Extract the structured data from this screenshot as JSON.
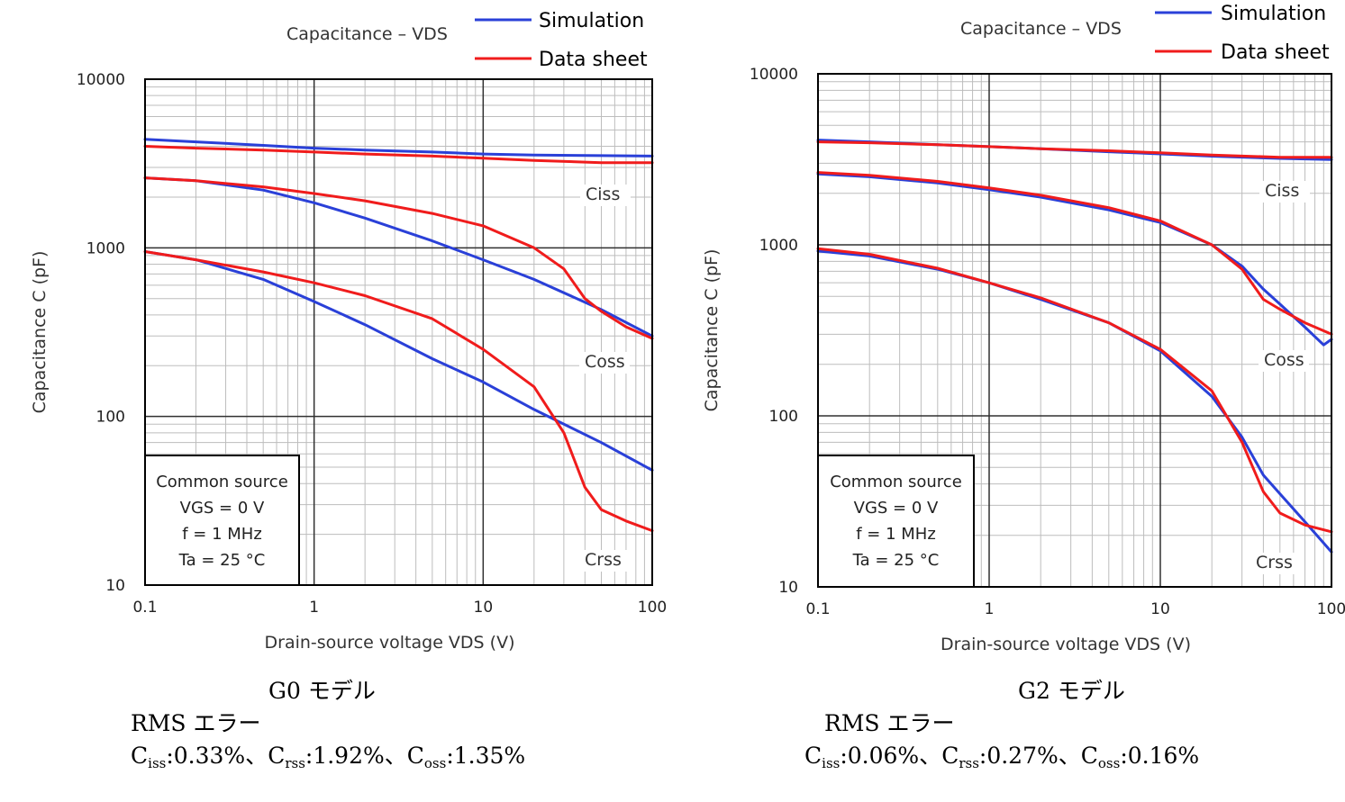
{
  "chart_data": [
    {
      "type": "line",
      "title": "Capacitance – VDS",
      "xlabel": "Drain-source voltage  VDS (V)",
      "ylabel": "Capacitance  C  (pF)",
      "xscale": "log",
      "yscale": "log",
      "xlim": [
        0.1,
        100
      ],
      "ylim": [
        10,
        10000
      ],
      "xticks": [
        "0.1",
        "1",
        "10",
        "100"
      ],
      "yticks": [
        "10",
        "100",
        "1000",
        "10000"
      ],
      "grid": true,
      "legend": [
        {
          "name": "Simulation",
          "color": "#2a40d8"
        },
        {
          "name": "Data sheet",
          "color": "#f01c1c"
        }
      ],
      "conditions": [
        "Common source",
        "VGS = 0 V",
        "f = 1 MHz",
        "Ta = 25 °C"
      ],
      "curve_labels": [
        "Ciss",
        "Coss",
        "Crss"
      ],
      "series": [
        {
          "name": "Ciss (Simulation)",
          "color": "#2a40d8",
          "x": [
            0.1,
            0.2,
            0.5,
            1,
            2,
            5,
            10,
            20,
            50,
            100
          ],
          "y": [
            4400,
            4250,
            4050,
            3900,
            3800,
            3700,
            3600,
            3550,
            3520,
            3500
          ]
        },
        {
          "name": "Ciss (Data sheet)",
          "color": "#f01c1c",
          "x": [
            0.1,
            0.2,
            0.5,
            1,
            2,
            5,
            10,
            20,
            50,
            100
          ],
          "y": [
            4000,
            3900,
            3800,
            3700,
            3600,
            3500,
            3400,
            3300,
            3200,
            3200
          ]
        },
        {
          "name": "Coss (Simulation)",
          "color": "#2a40d8",
          "x": [
            0.1,
            0.2,
            0.5,
            1,
            2,
            5,
            10,
            20,
            50,
            100
          ],
          "y": [
            2600,
            2500,
            2200,
            1850,
            1500,
            1100,
            850,
            650,
            430,
            300
          ]
        },
        {
          "name": "Coss (Data sheet)",
          "color": "#f01c1c",
          "x": [
            0.1,
            0.2,
            0.5,
            1,
            2,
            5,
            10,
            20,
            30,
            40,
            50,
            70,
            100
          ],
          "y": [
            2600,
            2500,
            2300,
            2100,
            1900,
            1600,
            1350,
            1000,
            750,
            500,
            420,
            340,
            290
          ]
        },
        {
          "name": "Crss (Simulation)",
          "color": "#2a40d8",
          "x": [
            0.1,
            0.2,
            0.5,
            1,
            2,
            5,
            10,
            20,
            50,
            100
          ],
          "y": [
            950,
            850,
            650,
            480,
            350,
            220,
            160,
            110,
            70,
            48
          ]
        },
        {
          "name": "Crss (Data sheet)",
          "color": "#f01c1c",
          "x": [
            0.1,
            0.2,
            0.5,
            1,
            2,
            5,
            10,
            20,
            30,
            40,
            50,
            70,
            100
          ],
          "y": [
            950,
            850,
            720,
            620,
            520,
            380,
            250,
            150,
            80,
            38,
            28,
            24,
            21
          ]
        }
      ]
    },
    {
      "type": "line",
      "title": "Capacitance – VDS",
      "xlabel": "Drain-source voltage  VDS (V)",
      "ylabel": "Capacitance  C  (pF)",
      "xscale": "log",
      "yscale": "log",
      "xlim": [
        0.1,
        100
      ],
      "ylim": [
        10,
        10000
      ],
      "xticks": [
        "0.1",
        "1",
        "10",
        "100"
      ],
      "yticks": [
        "10",
        "100",
        "1000",
        "10000"
      ],
      "grid": true,
      "legend": [
        {
          "name": "Simulation",
          "color": "#2a40d8"
        },
        {
          "name": "Data sheet",
          "color": "#f01c1c"
        }
      ],
      "conditions": [
        "Common source",
        "VGS = 0 V",
        "f = 1 MHz",
        "Ta = 25 °C"
      ],
      "curve_labels": [
        "Ciss",
        "Coss",
        "Crss"
      ],
      "series": [
        {
          "name": "Ciss (Simulation)",
          "color": "#2a40d8",
          "x": [
            0.1,
            0.2,
            0.5,
            1,
            2,
            5,
            10,
            20,
            50,
            100
          ],
          "y": [
            4100,
            4000,
            3850,
            3750,
            3650,
            3500,
            3400,
            3300,
            3200,
            3150
          ]
        },
        {
          "name": "Ciss (Data sheet)",
          "color": "#f01c1c",
          "x": [
            0.1,
            0.2,
            0.5,
            1,
            2,
            5,
            10,
            20,
            50,
            100
          ],
          "y": [
            4000,
            3950,
            3850,
            3750,
            3650,
            3550,
            3450,
            3350,
            3250,
            3250
          ]
        },
        {
          "name": "Coss (Simulation)",
          "color": "#2a40d8",
          "x": [
            0.1,
            0.2,
            0.5,
            1,
            2,
            5,
            10,
            20,
            30,
            40,
            50,
            70,
            90,
            100
          ],
          "y": [
            2600,
            2500,
            2300,
            2100,
            1900,
            1600,
            1350,
            1000,
            750,
            550,
            450,
            330,
            260,
            280
          ]
        },
        {
          "name": "Coss (Data sheet)",
          "color": "#f01c1c",
          "x": [
            0.1,
            0.2,
            0.5,
            1,
            2,
            5,
            10,
            20,
            30,
            40,
            50,
            70,
            100
          ],
          "y": [
            2650,
            2550,
            2350,
            2150,
            1950,
            1650,
            1380,
            1000,
            720,
            480,
            420,
            350,
            300
          ]
        },
        {
          "name": "Crss (Simulation)",
          "color": "#2a40d8",
          "x": [
            0.1,
            0.2,
            0.5,
            1,
            2,
            5,
            10,
            20,
            30,
            40,
            50,
            70,
            100
          ],
          "y": [
            920,
            860,
            720,
            600,
            480,
            350,
            240,
            130,
            75,
            45,
            35,
            24,
            16
          ]
        },
        {
          "name": "Crss (Data sheet)",
          "color": "#f01c1c",
          "x": [
            0.1,
            0.2,
            0.5,
            1,
            2,
            5,
            10,
            20,
            30,
            40,
            50,
            70,
            100
          ],
          "y": [
            950,
            880,
            730,
            600,
            490,
            350,
            245,
            140,
            70,
            36,
            27,
            23,
            21
          ]
        }
      ]
    }
  ],
  "captions": {
    "left": {
      "model": "G0 モデル",
      "rms_title": "RMS エラー",
      "items": [
        {
          "sym": "C",
          "sub": "iss",
          "val": ":0.33%、"
        },
        {
          "sym": "C",
          "sub": "rss",
          "val": ":1.92%、"
        },
        {
          "sym": "C",
          "sub": "oss",
          "val": ":1.35%"
        }
      ]
    },
    "right": {
      "model": "G2 モデル",
      "rms_title": "RMS エラー",
      "items": [
        {
          "sym": "C",
          "sub": "iss",
          "val": ":0.06%、"
        },
        {
          "sym": "C",
          "sub": "rss",
          "val": ":0.27%、"
        },
        {
          "sym": "C",
          "sub": "oss",
          "val": ":0.16%"
        }
      ]
    }
  }
}
